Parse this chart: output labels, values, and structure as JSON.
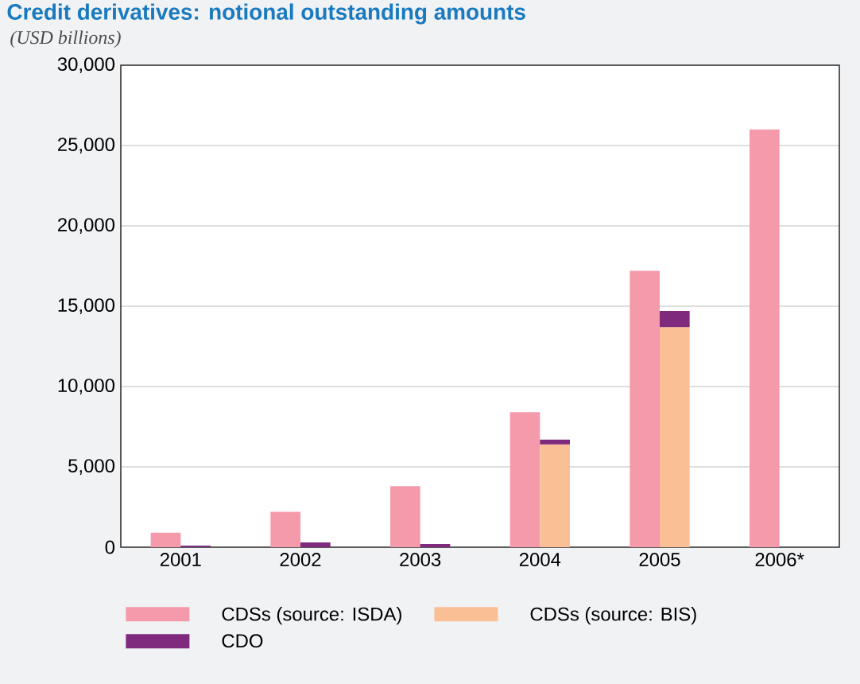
{
  "chart_data": {
    "type": "bar",
    "title": "Credit derivatives: notional outstanding amounts",
    "subtitle": "(USD billions)",
    "categories": [
      "2001",
      "2002",
      "2003",
      "2004",
      "2005",
      "2006*"
    ],
    "series": [
      {
        "name": "CDSs (source: ISDA)",
        "color": "#f59aab",
        "values": [
          900,
          2200,
          3800,
          8400,
          17200,
          26000
        ]
      },
      {
        "name": "CDSs (source: BIS)",
        "color": "#fbbf96",
        "values": [
          null,
          null,
          null,
          6400,
          13700,
          null
        ]
      },
      {
        "name": "CDO",
        "color": "#7f2a7c",
        "values": [
          100,
          300,
          200,
          300,
          1000,
          null
        ],
        "base": [
          0,
          0,
          0,
          6400,
          13700,
          null
        ]
      }
    ],
    "ylim": [
      0,
      30000
    ],
    "yticks": [
      0,
      {
        "value": 5000,
        "label": "5,000"
      },
      {
        "value": 10000,
        "label": "10,000"
      },
      {
        "value": 15000,
        "label": "15,000"
      },
      {
        "value": 20000,
        "label": "20,000"
      },
      {
        "value": 25000,
        "label": "25,000"
      },
      {
        "value": 30000,
        "label": "30,000"
      }
    ],
    "grid": "y",
    "legend": "bottom"
  }
}
